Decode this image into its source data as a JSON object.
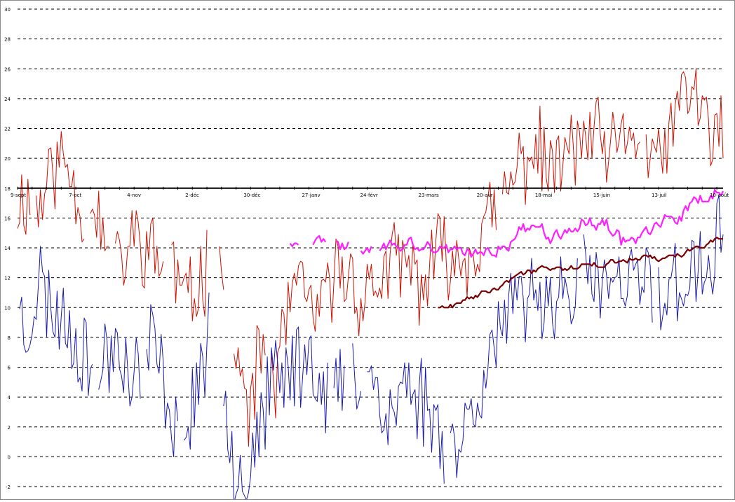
{
  "chart_data": {
    "type": "line",
    "title": "",
    "xlabel": "",
    "ylabel": "",
    "ylim": [
      -2,
      30
    ],
    "yticks": [
      -2,
      0,
      2,
      4,
      6,
      8,
      10,
      12,
      14,
      16,
      18,
      20,
      22,
      24,
      26,
      28,
      30
    ],
    "x_count": 340,
    "x_ticks": [
      {
        "i": 0,
        "label": "9-sept"
      },
      {
        "i": 28,
        "label": "7-oct"
      },
      {
        "i": 56,
        "label": "4-nov"
      },
      {
        "i": 84,
        "label": "2-déc"
      },
      {
        "i": 112,
        "label": "30-déc"
      },
      {
        "i": 140,
        "label": "27-janv"
      },
      {
        "i": 168,
        "label": "24-févr"
      },
      {
        "i": 196,
        "label": "23-mars"
      },
      {
        "i": 224,
        "label": "20-avr"
      },
      {
        "i": 252,
        "label": "18-mai"
      },
      {
        "i": 280,
        "label": "15-juin"
      },
      {
        "i": 308,
        "label": "13-juil"
      },
      {
        "i": 336,
        "label": "10-août"
      }
    ],
    "grid": true,
    "colors": {
      "frame": "#8a8a8a",
      "gridline": "#000000",
      "axis": "#000000",
      "tick_label": "#000000"
    },
    "series": [
      {
        "color": "#d01000",
        "width": 1,
        "values": []
      },
      {
        "color": "#1a1ab0",
        "width": 1,
        "values": []
      },
      {
        "color": "#ff20ff",
        "width": 2.2,
        "values": []
      },
      {
        "color": "#7a0000",
        "width": 2.2,
        "values": []
      }
    ]
  }
}
